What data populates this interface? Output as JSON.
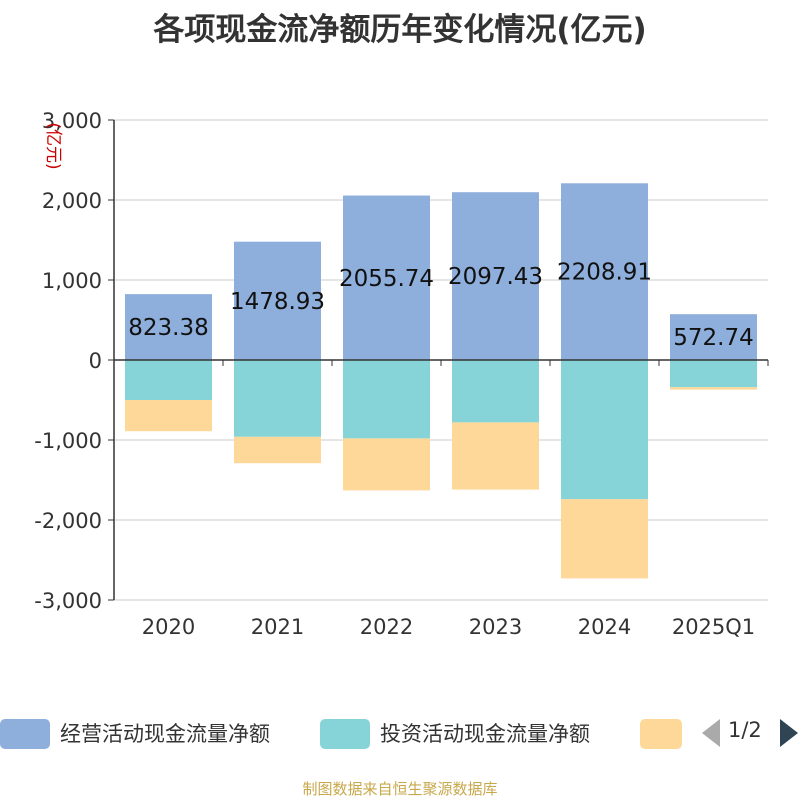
{
  "title": "各项现金流净额历年变化情况(亿元)",
  "source_note": "制图数据来自恒生聚源数据库",
  "legend": {
    "items": [
      {
        "label": "经营活动现金流量净额",
        "color": "#8eaedb"
      },
      {
        "label": "投资活动现金流量净额",
        "color": "#86d4d8"
      },
      {
        "label": "",
        "color": "#fdd898"
      }
    ],
    "pager": "1/2"
  },
  "chart_data": {
    "type": "bar",
    "stacked": true,
    "categories": [
      "2020",
      "2021",
      "2022",
      "2023",
      "2024",
      "2025Q1"
    ],
    "ylabel": "(亿元)",
    "ylim": [
      -3000,
      3000
    ],
    "yticks": [
      3000,
      2000,
      1000,
      0,
      -1000,
      -2000,
      -3000
    ],
    "ytick_labels": [
      "3,000",
      "2,000",
      "1,000",
      "0",
      "-1,000",
      "-2,000",
      "-3,000"
    ],
    "grid": true,
    "legend_position": "bottom",
    "series": [
      {
        "name": "经营活动现金流量净额",
        "color": "#8eaedb",
        "values": [
          823.38,
          1478.93,
          2055.74,
          2097.43,
          2208.91,
          572.74
        ],
        "labels": [
          "823.38",
          "1478.93",
          "2055.74",
          "2097.43",
          "2208.91",
          "572.74"
        ]
      },
      {
        "name": "投资活动现金流量净额",
        "color": "#86d4d8",
        "values": [
          -500,
          -960,
          -980,
          -780,
          -1740,
          -340
        ]
      },
      {
        "name": "",
        "color": "#fdd898",
        "values": [
          -390,
          -330,
          -650,
          -840,
          -990,
          -30
        ]
      }
    ]
  }
}
